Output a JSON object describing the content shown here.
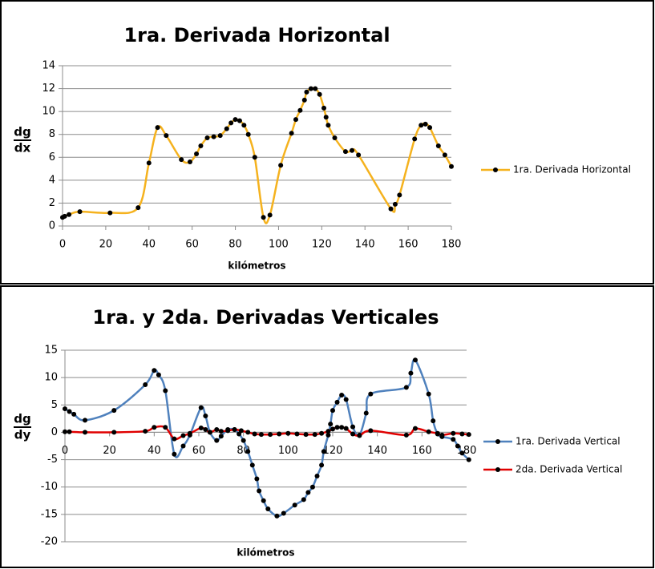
{
  "chart_data": [
    {
      "type": "line",
      "title": "1ra. Derivada Horizontal",
      "xlabel": "kilómetros",
      "ylabel": {
        "numerator": "dg",
        "denominator": "dx"
      },
      "xlim": [
        0,
        180
      ],
      "xticks": [
        0,
        20,
        40,
        60,
        80,
        100,
        120,
        140,
        160,
        180
      ],
      "ylim": [
        0,
        14
      ],
      "yticks": [
        0,
        2,
        4,
        6,
        8,
        10,
        12,
        14
      ],
      "grid": true,
      "legend": "right",
      "smooth": true,
      "series": [
        {
          "name": "1ra. Derivada Horizontal",
          "color": "#f5b21e",
          "x": [
            0,
            1,
            3,
            8,
            22,
            35,
            40,
            44,
            48,
            55,
            59,
            62,
            64,
            67,
            70,
            73,
            76,
            78,
            80,
            82,
            84,
            86,
            89,
            93,
            96,
            101,
            106,
            108,
            110,
            112,
            113,
            115,
            117,
            119,
            121,
            122,
            123,
            126,
            131,
            134,
            137,
            152,
            154,
            156,
            163,
            166,
            168,
            170,
            174,
            177,
            180
          ],
          "values": [
            0.75,
            0.85,
            1.0,
            1.25,
            1.15,
            1.6,
            5.5,
            8.6,
            7.9,
            5.8,
            5.6,
            6.3,
            7.0,
            7.7,
            7.8,
            7.9,
            8.5,
            9.0,
            9.3,
            9.2,
            8.8,
            8.0,
            6.0,
            0.75,
            0.95,
            5.3,
            8.1,
            9.3,
            10.1,
            11.0,
            11.7,
            12.0,
            12.0,
            11.5,
            10.3,
            9.5,
            8.8,
            7.7,
            6.5,
            6.6,
            6.2,
            1.5,
            1.9,
            2.7,
            7.6,
            8.8,
            8.9,
            8.6,
            7.0,
            6.2,
            5.2
          ]
        }
      ]
    },
    {
      "type": "line",
      "title": "1ra. y 2da. Derivadas Verticales",
      "xlabel": "kilómetros",
      "ylabel": {
        "numerator": "dg",
        "denominator": "dy"
      },
      "xlim": [
        0,
        180
      ],
      "xticks": [
        0,
        20,
        40,
        60,
        80,
        100,
        120,
        140,
        160,
        180
      ],
      "ylim": [
        -20,
        15
      ],
      "yticks": [
        -20,
        -15,
        -10,
        -5,
        0,
        5,
        10,
        15
      ],
      "grid": true,
      "legend": "right",
      "smooth": true,
      "series": [
        {
          "name": "1ra. Derivada Vertical",
          "color": "#4f81bd",
          "x": [
            0,
            2,
            4,
            9,
            22,
            36,
            40,
            42,
            45,
            49,
            53,
            56,
            61,
            63,
            65,
            68,
            70,
            73,
            76,
            78,
            80,
            82,
            84,
            86,
            87,
            89,
            91,
            95,
            98,
            103,
            107,
            109,
            111,
            113,
            115,
            116,
            118,
            119,
            120,
            122,
            124,
            126,
            129,
            132,
            135,
            137,
            153,
            155,
            157,
            163,
            165,
            167,
            169,
            174,
            176,
            178,
            181
          ],
          "values": [
            4.3,
            3.8,
            3.3,
            2.2,
            4.0,
            8.7,
            11.3,
            10.5,
            7.6,
            -4.0,
            -2.5,
            -0.5,
            4.5,
            3.0,
            0,
            -1.5,
            -0.7,
            0.5,
            0.5,
            -0.3,
            -1.5,
            -3.5,
            -6.0,
            -8.5,
            -10.7,
            -12.5,
            -14.0,
            -15.3,
            -14.8,
            -13.3,
            -12.3,
            -11.0,
            -10.0,
            -8.0,
            -6.0,
            -3.5,
            -0.5,
            1.5,
            4.0,
            5.5,
            6.8,
            6.0,
            1.0,
            -0.5,
            3.5,
            7.0,
            8.2,
            10.8,
            13.2,
            7.0,
            2.1,
            -0.3,
            -0.8,
            -1.3,
            -2.5,
            -3.8,
            -5.0
          ]
        },
        {
          "name": "2da. Derivada Vertical",
          "color": "#e00000",
          "x": [
            0,
            2,
            9,
            22,
            36,
            40,
            45,
            49,
            53,
            56,
            61,
            63,
            65,
            68,
            70,
            73,
            76,
            79,
            82,
            85,
            88,
            92,
            96,
            100,
            104,
            108,
            112,
            115,
            118,
            120,
            122,
            124,
            126,
            129,
            132,
            137,
            153,
            157,
            163,
            167,
            169,
            174,
            178,
            181
          ],
          "values": [
            0.1,
            0.1,
            0,
            0,
            0.2,
            0.9,
            0.9,
            -1.2,
            -0.6,
            -0.2,
            0.8,
            0.5,
            0,
            0.5,
            0.2,
            0.3,
            0.5,
            0.3,
            0,
            -0.3,
            -0.4,
            -0.4,
            -0.3,
            -0.2,
            -0.3,
            -0.4,
            -0.4,
            -0.2,
            0.2,
            0.6,
            0.9,
            0.9,
            0.7,
            -0.3,
            -0.6,
            0.3,
            -0.5,
            0.7,
            0.1,
            -0.2,
            -0.5,
            -0.2,
            -0.3,
            -0.4
          ]
        }
      ]
    }
  ]
}
